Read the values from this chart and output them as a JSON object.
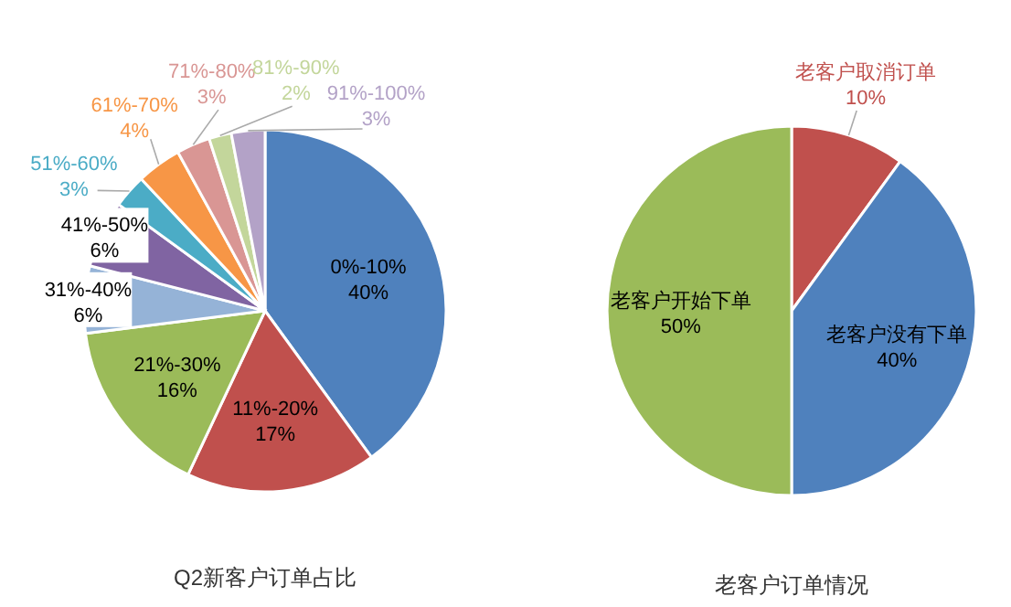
{
  "chart_data": [
    {
      "type": "pie",
      "title": "Q2新客户订单占比",
      "categories": [
        "0%-10%",
        "11%-20%",
        "21%-30%",
        "31%-40%",
        "41%-50%",
        "51%-60%",
        "61%-70%",
        "71%-80%",
        "81%-90%",
        "91%-100%"
      ],
      "values": [
        40,
        17,
        16,
        6,
        6,
        3,
        4,
        3,
        2,
        3
      ],
      "value_labels": [
        "40%",
        "17%",
        "16%",
        "6%",
        "6%",
        "3%",
        "4%",
        "3%",
        "2%",
        "3%"
      ],
      "colors": [
        "#4f81bd",
        "#c0504d",
        "#9bbb59",
        "#95b3d7",
        "#8064a2",
        "#4bacc6",
        "#f79646",
        "#d99694",
        "#c3d69b",
        "#b3a2c7"
      ]
    },
    {
      "type": "pie",
      "title": "老客户订单情况",
      "categories": [
        "老客户取消订单",
        "老客户没有下单",
        "老客户开始下单"
      ],
      "values": [
        10,
        40,
        50
      ],
      "value_labels": [
        "10%",
        "40%",
        "50%"
      ],
      "colors": [
        "#c0504d",
        "#4f81bd",
        "#9bbb59"
      ]
    }
  ]
}
